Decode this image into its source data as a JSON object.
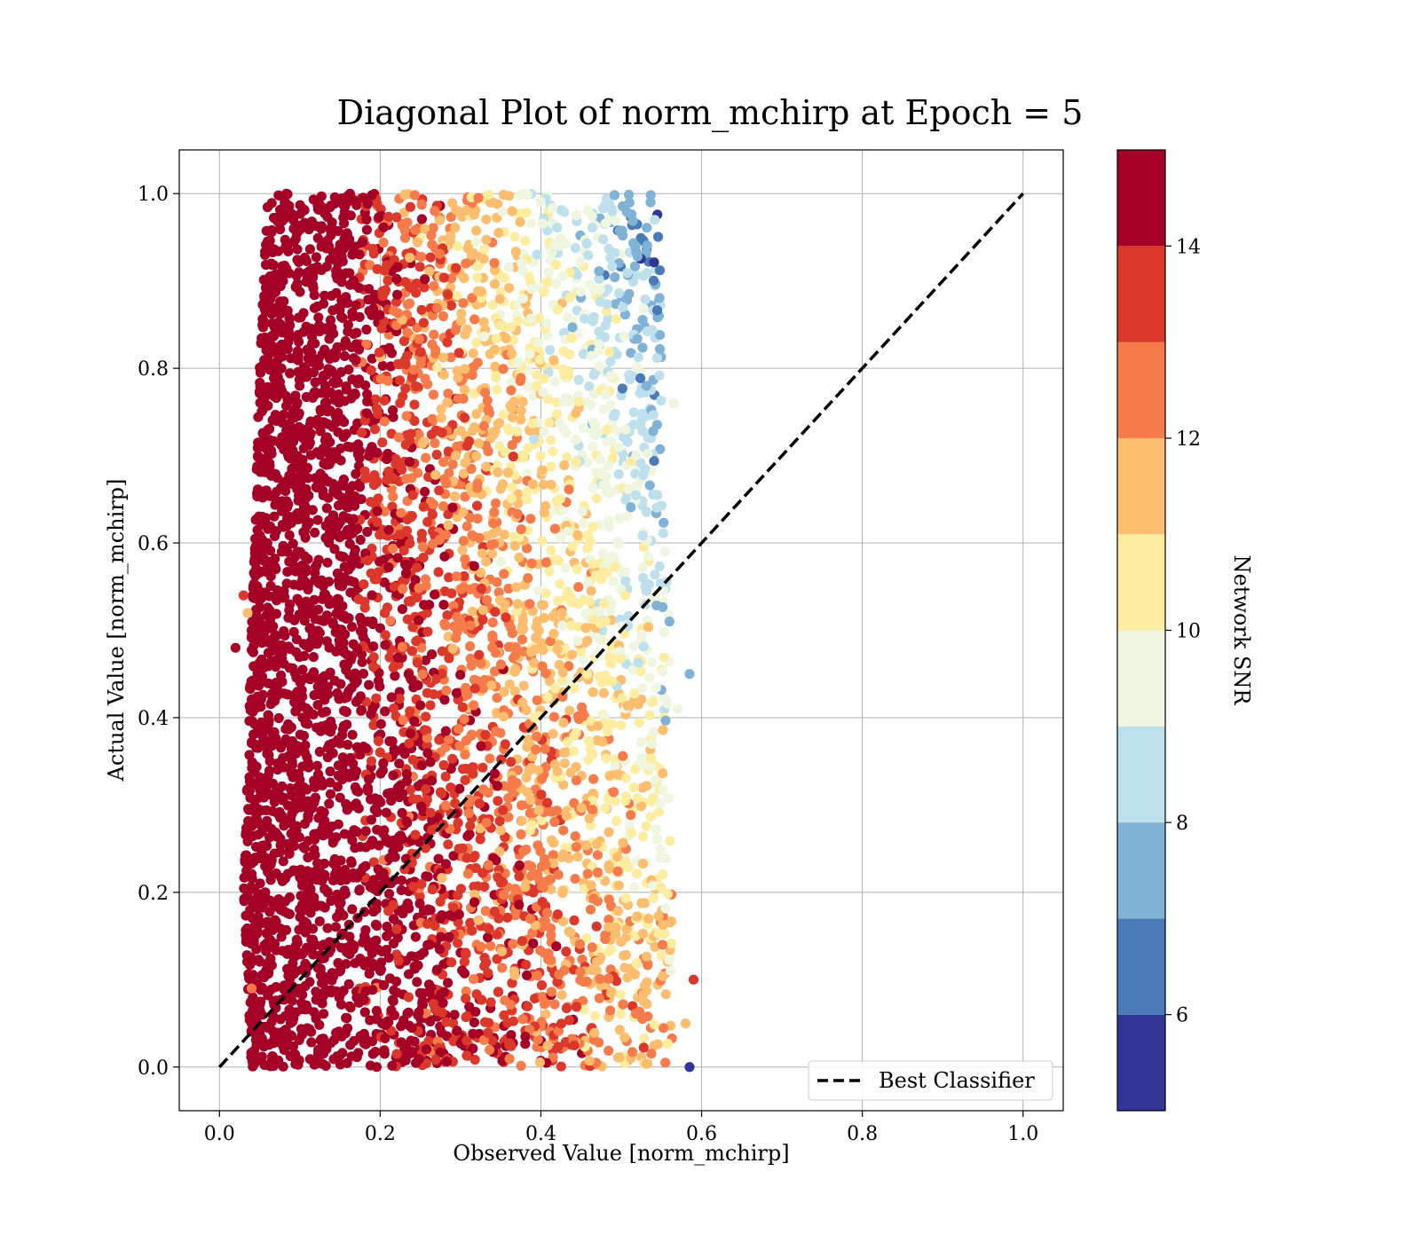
{
  "chart_data": {
    "type": "scatter",
    "title": "Diagonal Plot of norm_mchirp at Epoch = 5",
    "xlabel": "Observed Value [norm_mchirp]",
    "ylabel": "Actual Value [norm_mchirp]",
    "xlim": [
      -0.05,
      1.05
    ],
    "ylim": [
      -0.05,
      1.05
    ],
    "xticks": [
      0.0,
      0.2,
      0.4,
      0.6,
      0.8,
      1.0
    ],
    "xtick_labels": [
      "0.0",
      "0.2",
      "0.4",
      "0.6",
      "0.8",
      "1.0"
    ],
    "yticks": [
      0.0,
      0.2,
      0.4,
      0.6,
      0.8,
      1.0
    ],
    "ytick_labels": [
      "0.0",
      "0.2",
      "0.4",
      "0.6",
      "0.8",
      "1.0"
    ],
    "grid": true,
    "legend": {
      "position": "lower-right",
      "entries": [
        {
          "label": "Best Classifier",
          "style": "dashed",
          "color": "#000000"
        }
      ]
    },
    "reference_line": {
      "name": "Best Classifier",
      "x": [
        0.0,
        1.0
      ],
      "y": [
        0.0,
        1.0
      ],
      "style": "dashed",
      "color": "#000000"
    },
    "colorbar": {
      "label": "Network SNR",
      "min": 5,
      "max": 15,
      "ticks": [
        6,
        8,
        10,
        12,
        14
      ],
      "tick_labels": [
        "6",
        "8",
        "10",
        "12",
        "14"
      ],
      "colormap": "RdYlBu_r",
      "colors": [
        "#313695",
        "#4575b4",
        "#74add1",
        "#abd9e9",
        "#e0f3f8",
        "#ffffbf",
        "#fee090",
        "#fdae61",
        "#f46d43",
        "#d73027",
        "#a50026"
      ],
      "bins": [
        {
          "from": 5,
          "to": 6,
          "color": "#313695"
        },
        {
          "from": 6,
          "to": 7,
          "color": "#4a7ab7"
        },
        {
          "from": 7,
          "to": 8,
          "color": "#7fb2d5"
        },
        {
          "from": 8,
          "to": 9,
          "color": "#bde0ec"
        },
        {
          "from": 9,
          "to": 10,
          "color": "#eef6e0"
        },
        {
          "from": 10,
          "to": 11,
          "color": "#feeda1"
        },
        {
          "from": 11,
          "to": 12,
          "color": "#fcbd6e"
        },
        {
          "from": 12,
          "to": 13,
          "color": "#f57b4a"
        },
        {
          "from": 13,
          "to": 14,
          "color": "#db382b"
        },
        {
          "from": 14,
          "to": 15,
          "color": "#a50026"
        }
      ]
    },
    "scatter_density": {
      "x_range": [
        0.03,
        0.6
      ],
      "y_range": [
        0.0,
        1.0
      ],
      "x_max_by_y": [
        [
          0.0,
          0.57
        ],
        [
          0.1,
          0.565
        ],
        [
          0.3,
          0.56
        ],
        [
          0.5,
          0.56
        ],
        [
          0.7,
          0.55
        ],
        [
          1.0,
          0.55
        ]
      ],
      "x_min_by_y": [
        [
          0.0,
          0.04
        ],
        [
          0.2,
          0.03
        ],
        [
          0.5,
          0.04
        ],
        [
          0.8,
          0.05
        ],
        [
          1.0,
          0.06
        ]
      ],
      "snr_trend": "high SNR (red) at low observed values, decreasing SNR (blue) toward higher observed values and higher actual values"
    }
  }
}
